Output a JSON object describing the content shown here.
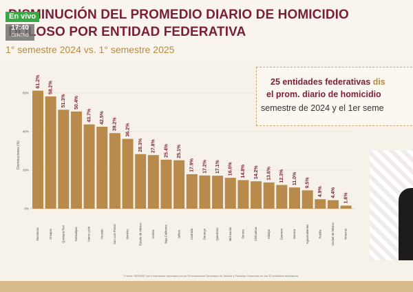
{
  "live_badge": "En vivo",
  "hora": {
    "time": "17:40",
    "zone": "CENTRO"
  },
  "title": {
    "line1": "DISMINUCIÓN DEL PROMEDIO DIARIO DE HOMICIDIO",
    "line2": "DOLOSO POR ENTIDAD FEDERATIVA"
  },
  "subtitle": "1° semestre 2024 vs. 1° semestre 2025",
  "callout": {
    "line1_a": "25 entidades federativas ",
    "line1_b": "dis",
    "line2_a": "el prom. diario de homicidio",
    "line2_b": "",
    "line3": "semestre de 2024 y el 1er seme"
  },
  "source_note": "Fuente: SESNSP con información reportada por las Procuradurías Generales de Justicia y Fiscalías Generales de las 32 entidades federativas",
  "colors": {
    "bar": "#b88a4b",
    "title": "#7a1f33",
    "accent": "#b8893f"
  },
  "chart_data": {
    "type": "bar",
    "categories": [
      "Zacatecas",
      "Chiapas",
      "Quintana Roo",
      "Tamaulipas",
      "Nuevo León",
      "Yucatán",
      "San Luis Potosí",
      "Morelos",
      "Estado de México",
      "Colima",
      "Baja California",
      "Jalisco",
      "Coahuila",
      "Durango",
      "Querétaro",
      "Michoacán",
      "Sonora",
      "Chihuahua",
      "Hidalgo",
      "Guerrero",
      "Oaxaca",
      "Aguascalientes",
      "Puebla",
      "Ciudad de México",
      "Veracruz"
    ],
    "values": [
      61.2,
      58.2,
      51.3,
      50.4,
      43.7,
      42.5,
      39.2,
      36.2,
      28.3,
      27.8,
      25.4,
      25.1,
      17.9,
      17.2,
      17.1,
      16.0,
      14.8,
      14.2,
      13.6,
      12.3,
      11.0,
      9.5,
      4.9,
      4.4,
      1.6
    ],
    "value_labels": [
      "61.2%",
      "58.2%",
      "51.3%",
      "50.4%",
      "43.7%",
      "42.5%",
      "39.2%",
      "36.2%",
      "28.3%",
      "27.8%",
      "25.4%",
      "25.1%",
      "17.9%",
      "17.2%",
      "17.1%",
      "16.0%",
      "14.8%",
      "14.2%",
      "13.6%",
      "12.3%",
      "11.0%",
      "9.5%",
      "4.9%",
      "4.4%",
      "1.6%"
    ],
    "ylabel": "Disminuciones (%)",
    "yticks": [
      "0%",
      "20%",
      "40%",
      "60%"
    ],
    "ylim": [
      0,
      70
    ],
    "grid": true,
    "legend": "none"
  }
}
